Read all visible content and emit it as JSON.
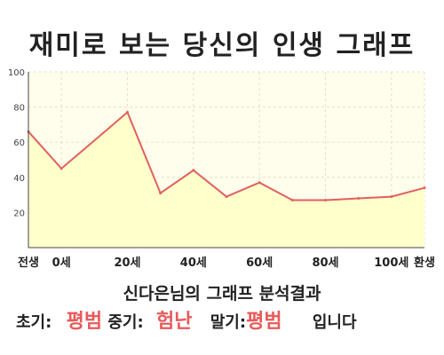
{
  "title": "재미로 보는 당신의 인생 그래프",
  "subtitle": "신다은님의 그래프 분석결과",
  "result": {
    "early_label": "초기:",
    "early_value": "평범",
    "mid_label": "중기:",
    "mid_value": "험난",
    "late_label": "말기:",
    "late_value": "평범",
    "suffix": "입니다"
  },
  "colors": {
    "line": "#e06060",
    "fill": "#ffffcc",
    "plot_background": "#fffdeb",
    "highlight": "#e85a5a"
  },
  "chart_data": {
    "type": "area",
    "x": [
      -10,
      0,
      20,
      30,
      40,
      50,
      60,
      70,
      80,
      90,
      100,
      110
    ],
    "y": [
      66,
      45,
      77,
      31,
      44,
      29,
      37,
      27,
      27,
      28,
      29,
      34
    ],
    "x_ticks": [
      -10,
      0,
      20,
      40,
      60,
      80,
      100,
      110
    ],
    "x_tick_labels": [
      "전생",
      "0세",
      "20세",
      "40세",
      "60세",
      "80세",
      "100세",
      "환생"
    ],
    "y_ticks": [
      20,
      40,
      60,
      80,
      100
    ],
    "xlim": [
      -10,
      110
    ],
    "ylim": [
      0,
      100
    ],
    "grid": true,
    "xlabel": "",
    "ylabel": ""
  }
}
